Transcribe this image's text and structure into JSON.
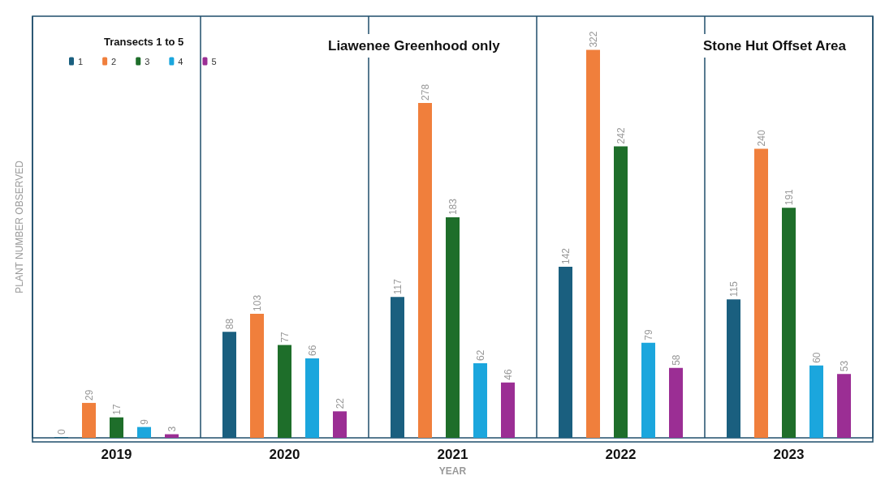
{
  "chart_data": {
    "type": "bar",
    "xlabel": "YEAR",
    "ylabel": "PLANT NUMBER OBSERVED",
    "legend_title": "Transects 1 to 5",
    "legend": "top left",
    "grid": "x",
    "data_labels": true,
    "annotations": [
      "Liawenee Greenhood only",
      "Stone Hut Offset Area"
    ],
    "categories": [
      "2019",
      "2020",
      "2021",
      "2022",
      "2023"
    ],
    "series": [
      {
        "name": "1",
        "color": "#1a5f7f",
        "values": [
          0,
          88,
          117,
          142,
          115
        ]
      },
      {
        "name": "2",
        "color": "#f07f3c",
        "values": [
          29,
          103,
          278,
          322,
          240
        ]
      },
      {
        "name": "3",
        "color": "#1e6e2a",
        "values": [
          17,
          77,
          183,
          242,
          191
        ]
      },
      {
        "name": "4",
        "color": "#1ba6dd",
        "values": [
          9,
          66,
          62,
          79,
          60
        ]
      },
      {
        "name": "5",
        "color": "#9b2e94",
        "values": [
          3,
          22,
          46,
          58,
          53
        ]
      }
    ]
  }
}
